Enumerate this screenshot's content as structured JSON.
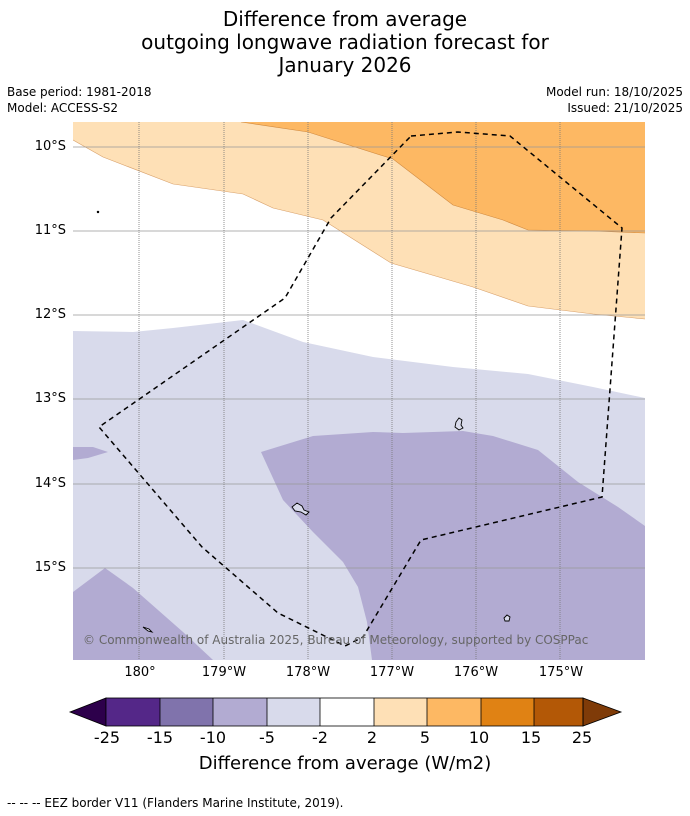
{
  "title": {
    "line1": "Difference from average",
    "line2": "outgoing longwave radiation forecast for",
    "line3": "January 2026"
  },
  "meta_left": {
    "base_period": "Base period: 1981-2018",
    "model": "Model: ACCESS-S2"
  },
  "meta_right": {
    "model_run": "Model run: 18/10/2025",
    "issued": "Issued: 21/10/2025"
  },
  "map": {
    "latitude_labels": [
      "10°S",
      "11°S",
      "12°S",
      "13°S",
      "14°S",
      "15°S"
    ],
    "longitude_labels": [
      "180°",
      "179°W",
      "178°W",
      "177°W",
      "176°W",
      "175°W"
    ],
    "lon_range": [
      "179.2°E",
      "174.2°W"
    ],
    "lat_range": [
      "9.7°S",
      "16.1°S"
    ],
    "copyright": "© Commonwealth of Australia 2025, Bureau of Meteorology, supported by COSPPac",
    "background_color": "#ffffff",
    "eez_line_color": "#000000",
    "region_colors": {
      "pos_5_10": "#fdb863",
      "pos_2_5": "#fee0b6",
      "neg_2_5": "#d8daeb",
      "neg_5_10": "#b2abd2"
    }
  },
  "colorbar": {
    "tick_labels": [
      "-25",
      "-15",
      "-10",
      "-5",
      "-2",
      "2",
      "5",
      "10",
      "15",
      "25"
    ],
    "colors": [
      "#2d004b",
      "#542788",
      "#8073ac",
      "#b2abd2",
      "#d8daeb",
      "#ffffff",
      "#fee0b6",
      "#fdb863",
      "#e08214",
      "#b35806",
      "#7f3b08"
    ],
    "label": "Difference from average (W/m2)"
  },
  "source_note": "-- -- -- EEZ border V11 (Flanders Marine Institute, 2019)."
}
